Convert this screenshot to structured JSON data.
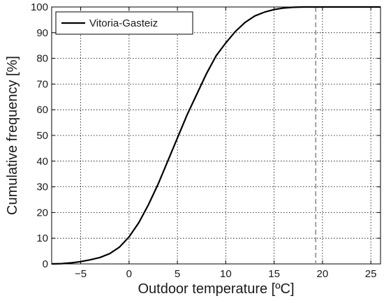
{
  "chart_data": {
    "type": "line",
    "title": "",
    "xlabel": "Outdoor temperature [ºC]",
    "ylabel": "Cumulative frequency [%]",
    "xlim": [
      -8,
      26
    ],
    "ylim": [
      0,
      100
    ],
    "xticks": [
      -5,
      0,
      5,
      10,
      15,
      20,
      25
    ],
    "yticks": [
      0,
      10,
      20,
      30,
      40,
      50,
      60,
      70,
      80,
      90,
      100
    ],
    "grid": true,
    "legend_position": "top-left",
    "series": [
      {
        "name": "Vitoria-Gasteiz",
        "color": "#000000",
        "x": [
          -8,
          -7,
          -6,
          -5,
          -4,
          -3,
          -2,
          -1,
          0,
          1,
          2,
          3,
          4,
          5,
          6,
          7,
          8,
          9,
          10,
          11,
          12,
          13,
          14,
          15,
          16,
          17,
          18,
          19,
          19.3,
          20,
          21,
          22,
          23,
          24,
          25,
          26
        ],
        "y": [
          0,
          0.1,
          0.4,
          0.9,
          1.6,
          2.5,
          4,
          6.5,
          10.5,
          16,
          23,
          31,
          40,
          49,
          58,
          66,
          74,
          81,
          86,
          90.5,
          94,
          96.5,
          98,
          99,
          99.6,
          99.9,
          100,
          100,
          100,
          100,
          100,
          100,
          100,
          100,
          100,
          100
        ]
      }
    ],
    "reference_line": {
      "x": 19.3,
      "color": "#a0a0a0",
      "style": "dashed"
    }
  }
}
